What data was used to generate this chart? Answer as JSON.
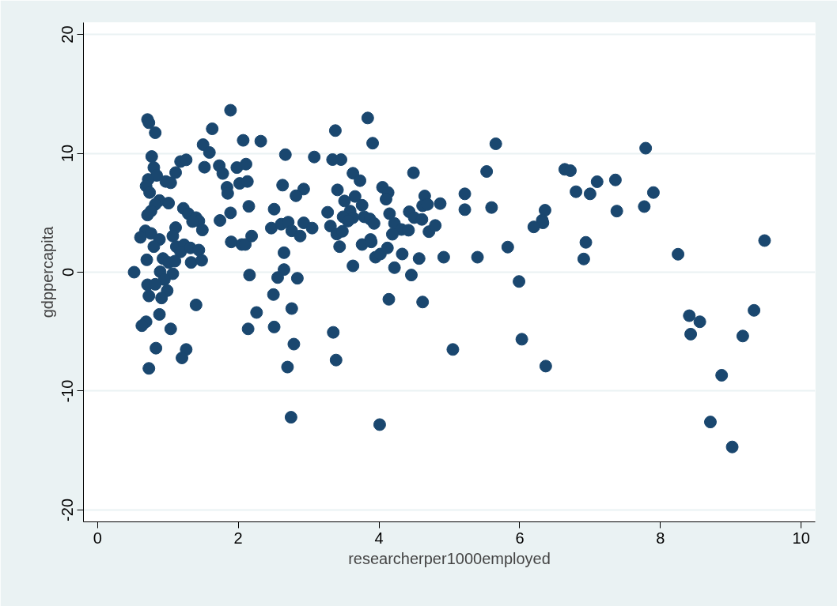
{
  "chart_data": {
    "type": "scatter",
    "xlabel": "researcherper1000employed",
    "ylabel": "gdppercapita",
    "xlim": [
      -0.2,
      10.2
    ],
    "ylim": [
      -21,
      21
    ],
    "xticks": [
      0,
      2,
      4,
      6,
      8,
      10
    ],
    "yticks": [
      -20,
      -10,
      0,
      10,
      20
    ],
    "grid": "y",
    "marker": "circle",
    "series": [
      {
        "color": "#1a476f",
        "x": [
          0.71,
          0.73,
          0.82,
          1.89,
          1.63,
          2.07,
          2.32,
          0.77,
          1.5,
          1.59,
          2.67,
          3.08,
          1.18,
          1.26,
          0.8,
          0.84,
          1.11,
          1.52,
          1.73,
          1.78,
          1.98,
          2.11,
          2.02,
          2.13,
          0.72,
          0.69,
          0.74,
          0.97,
          1.04,
          1.84,
          1.85,
          2.63,
          2.93,
          2.82,
          0.88,
          0.82,
          1.01,
          0.76,
          0.71,
          1.22,
          1.29,
          1.4,
          1.44,
          1.35,
          1.49,
          1.11,
          1.07,
          0.68,
          0.61,
          0.76,
          0.88,
          0.8,
          1.12,
          1.23,
          1.18,
          1.32,
          1.44,
          1.74,
          1.89,
          2.15,
          2.51,
          2.47,
          2.61,
          2.71,
          2.76,
          2.88,
          2.93,
          3.05,
          1.9,
          2.05,
          2.1,
          2.19,
          2.65,
          0.7,
          0.93,
          1.01,
          1.1,
          1.33,
          1.48,
          0.52,
          0.89,
          1.07,
          0.95,
          0.71,
          0.82,
          0.73,
          0.99,
          0.91,
          2.16,
          2.65,
          2.56,
          2.84,
          2.5,
          1.4,
          0.88,
          2.26,
          2.76,
          0.69,
          0.63,
          1.04,
          2.14,
          2.51,
          0.83,
          1.26,
          1.2,
          2.79,
          0.73,
          2.7,
          2.75,
          3.84,
          3.38,
          3.91,
          3.34,
          3.46,
          3.63,
          3.73,
          4.49,
          5.53,
          5.66,
          3.41,
          4.05,
          4.13,
          4.1,
          3.66,
          3.51,
          3.76,
          3.27,
          3.59,
          3.49,
          3.63,
          3.56,
          3.79,
          3.87,
          3.93,
          4.15,
          4.43,
          4.65,
          4.62,
          4.69,
          4.87,
          5.22,
          5.22,
          5.6,
          4.5,
          4.61,
          4.22,
          4.32,
          4.42,
          4.19,
          4.71,
          4.8,
          3.31,
          3.4,
          3.48,
          3.44,
          3.76,
          3.88,
          3.89,
          3.95,
          4.02,
          4.12,
          4.33,
          4.57,
          4.92,
          5.4,
          3.63,
          4.22,
          4.46,
          4.14,
          4.62,
          3.35,
          3.39,
          5.05,
          4.01,
          7.79,
          6.64,
          6.72,
          7.1,
          7.36,
          6.8,
          7.0,
          7.9,
          6.36,
          6.32,
          6.33,
          6.2,
          7.38,
          7.77,
          9.48,
          5.83,
          6.94,
          6.91,
          8.25,
          5.99,
          8.41,
          8.56,
          8.43,
          9.33,
          9.17,
          6.03,
          6.37,
          8.87,
          8.71,
          9.02
        ],
        "values": [
          12.84,
          12.57,
          11.73,
          13.62,
          12.06,
          11.09,
          11.02,
          9.73,
          10.73,
          10.07,
          9.89,
          9.69,
          9.31,
          9.45,
          8.8,
          8.14,
          8.38,
          8.83,
          8.96,
          8.3,
          8.8,
          9.09,
          7.47,
          7.63,
          7.8,
          7.25,
          6.7,
          7.63,
          7.52,
          7.14,
          6.63,
          7.32,
          6.99,
          6.43,
          6.03,
          5.7,
          5.81,
          5.14,
          4.81,
          5.37,
          4.92,
          4.59,
          4.3,
          4.26,
          3.55,
          3.75,
          3.04,
          3.48,
          2.93,
          3.26,
          2.75,
          2.15,
          2.15,
          2.31,
          1.71,
          2.04,
          1.86,
          4.35,
          4.99,
          5.54,
          5.3,
          3.71,
          4.04,
          4.21,
          3.48,
          3.04,
          4.15,
          3.71,
          2.55,
          2.33,
          2.33,
          3.04,
          1.64,
          1.04,
          1.15,
          0.82,
          0.93,
          0.82,
          1.0,
          0.0,
          0.04,
          -0.13,
          -0.62,
          -1.06,
          -1.02,
          -2.0,
          -1.55,
          -2.17,
          -0.24,
          0.22,
          -0.45,
          -0.51,
          -1.88,
          -2.75,
          -3.55,
          -3.39,
          -3.06,
          -4.17,
          -4.5,
          -4.77,
          -4.77,
          -4.61,
          -6.39,
          -6.5,
          -7.21,
          -6.05,
          -8.09,
          -7.98,
          -12.2,
          12.97,
          11.91,
          10.85,
          9.47,
          9.47,
          8.32,
          7.7,
          8.36,
          8.47,
          10.8,
          6.92,
          7.14,
          6.7,
          6.14,
          6.37,
          5.99,
          5.63,
          5.04,
          5.14,
          4.66,
          4.59,
          4.3,
          4.66,
          4.48,
          4.1,
          4.92,
          5.08,
          6.41,
          5.59,
          5.7,
          5.77,
          6.59,
          5.26,
          5.44,
          4.59,
          4.44,
          4.1,
          3.59,
          3.53,
          3.19,
          3.41,
          3.93,
          3.88,
          3.21,
          3.44,
          2.15,
          2.33,
          2.75,
          2.55,
          1.26,
          1.53,
          2.04,
          1.53,
          1.15,
          1.26,
          1.26,
          0.53,
          0.38,
          -0.24,
          -2.28,
          -2.51,
          -5.06,
          -7.39,
          -6.5,
          -12.82,
          10.43,
          8.65,
          8.54,
          7.61,
          7.76,
          6.77,
          6.59,
          6.7,
          5.21,
          4.37,
          4.15,
          3.81,
          5.14,
          5.52,
          2.66,
          2.11,
          2.51,
          1.11,
          1.51,
          -0.78,
          -3.66,
          -4.17,
          -5.21,
          -3.21,
          -5.37,
          -5.64,
          -7.9,
          -8.67,
          -12.6,
          -14.7
        ]
      }
    ]
  }
}
